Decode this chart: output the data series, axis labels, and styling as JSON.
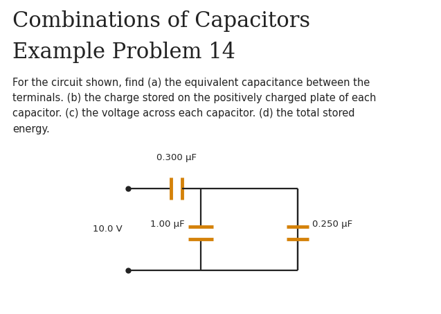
{
  "title_line1": "Combinations of Capacitors",
  "title_line2": "Example Problem 14",
  "body_text": "For the circuit shown, find (a) the equivalent capacitance between the\nterminals. (b) the charge stored on the positively charged plate of each\ncapacitor. (c) the voltage across each capacitor. (d) the total stored\nenergy.",
  "cap_color": "#D4820A",
  "wire_color": "#222222",
  "text_color": "#222222",
  "label_300": "0.300 μF",
  "label_100": "1.00 μF",
  "label_250": "0.250 μF",
  "label_voltage": "10.0 V",
  "bg_color": "#ffffff",
  "title_fontsize": 22,
  "body_fontsize": 10.5,
  "label_fontsize": 9.5
}
